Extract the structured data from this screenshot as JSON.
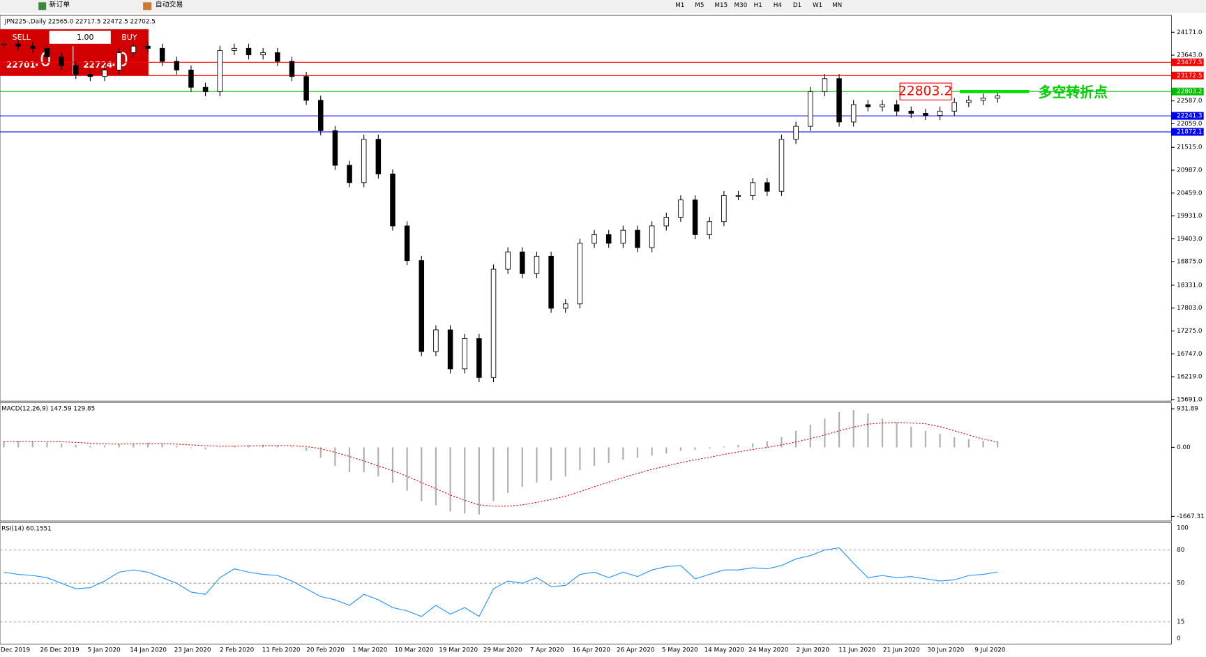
{
  "toolbar": {
    "new_order": "新订单",
    "auto_trade": "自动交易",
    "timeframes": [
      "M1",
      "M5",
      "M15",
      "M30",
      "H1",
      "H4",
      "D1",
      "W1",
      "MN"
    ]
  },
  "trade_panel": {
    "sell": "SELL",
    "lot": "1.00",
    "buy": "BUY",
    "bid_main": "22701",
    "bid_frac": ".0",
    "ask_main": "22724",
    "ask_frac": ".0"
  },
  "chart_data": {
    "type": "candlestick",
    "symbol_info": "JPN225-,Daily  22565.0 22717.5 22472.5 22702.5",
    "closes": [
      23900,
      23850,
      23800,
      23600,
      23400,
      23200,
      23150,
      23300,
      23700,
      23850,
      23800,
      23500,
      23300,
      22900,
      22800,
      23750,
      23800,
      23650,
      23700,
      23500,
      23150,
      22600,
      21900,
      21100,
      20700,
      21700,
      20900,
      19700,
      18900,
      16800,
      17300,
      16400,
      17100,
      16200,
      18700,
      19100,
      18600,
      19000,
      17800,
      17900,
      19300,
      19500,
      19300,
      19600,
      19200,
      19700,
      19900,
      20300,
      19500,
      19800,
      20400,
      20400,
      20700,
      20500,
      21700,
      22000,
      22800,
      23100,
      22100,
      22500,
      22450,
      22500,
      22350,
      22300,
      22250,
      22350,
      22550,
      22600,
      22650,
      22702.5
    ],
    "ylim": [
      15691,
      24171
    ],
    "yticks": [
      {
        "value": 24171,
        "label": "24171.0"
      },
      {
        "value": 23643,
        "label": "23643.0"
      },
      {
        "value": 22587,
        "label": "22587.0"
      },
      {
        "value": 22059,
        "label": "22059.0"
      },
      {
        "value": 21515,
        "label": "21515.0"
      },
      {
        "value": 20987,
        "label": "20987.0"
      },
      {
        "value": 20459,
        "label": "20459.0"
      },
      {
        "value": 19931,
        "label": "19931.0"
      },
      {
        "value": 19403,
        "label": "19403.0"
      },
      {
        "value": 18875,
        "label": "18875.0"
      },
      {
        "value": 18331,
        "label": "18331.0"
      },
      {
        "value": 17803,
        "label": "17803.0"
      },
      {
        "value": 17275,
        "label": "17275.0"
      },
      {
        "value": 16747,
        "label": "16747.0"
      },
      {
        "value": 16219,
        "label": "16219.0"
      },
      {
        "value": 15691,
        "label": "15691.0"
      }
    ],
    "levels": [
      {
        "value": 23477.5,
        "color": "#ff0000"
      },
      {
        "value": 23172.5,
        "color": "#ff0000"
      },
      {
        "value": 22803.2,
        "color": "#00c000"
      },
      {
        "value": 22241.3,
        "color": "#0000ff"
      },
      {
        "value": 21872.1,
        "color": "#0000ff"
      }
    ],
    "annotation": {
      "value": 22803.2,
      "text": "多空转折点"
    },
    "x_labels": [
      "Dec 2019",
      "26 Dec 2019",
      "5 Jan 2020",
      "14 Jan 2020",
      "23 Jan 2020",
      "2 Feb 2020",
      "11 Feb 2020",
      "20 Feb 2020",
      "1 Mar 2020",
      "10 Mar 2020",
      "19 Mar 2020",
      "29 Mar 2020",
      "7 Apr 2020",
      "16 Apr 2020",
      "26 Apr 2020",
      "5 May 2020",
      "14 May 2020",
      "24 May 2020",
      "2 Jun 2020",
      "11 Jun 2020",
      "21 Jun 2020",
      "30 Jun 2020",
      "9 Jul 2020"
    ],
    "macd": {
      "label": "MACD(12,26,9) 147.59 129.85",
      "ylim": [
        -1667.31,
        931.89
      ],
      "yticks": [
        931.89,
        {
          "value": 0,
          "label": "0.00"
        },
        -1667.31
      ],
      "hist": [
        150,
        160,
        150,
        120,
        90,
        60,
        40,
        50,
        80,
        100,
        110,
        90,
        40,
        -20,
        -50,
        0,
        40,
        60,
        60,
        50,
        20,
        -80,
        -250,
        -450,
        -600,
        -600,
        -700,
        -850,
        -1050,
        -1300,
        -1400,
        -1550,
        -1600,
        -1620,
        -1300,
        -1100,
        -950,
        -850,
        -800,
        -700,
        -550,
        -450,
        -380,
        -300,
        -250,
        -200,
        -150,
        -80,
        -60,
        -30,
        20,
        60,
        100,
        150,
        250,
        400,
        550,
        700,
        850,
        900,
        820,
        700,
        600,
        500,
        400,
        330,
        250,
        200,
        160,
        147.59
      ],
      "signal": [
        140,
        145,
        148,
        145,
        135,
        120,
        100,
        85,
        80,
        85,
        90,
        90,
        80,
        60,
        40,
        30,
        30,
        35,
        40,
        42,
        40,
        20,
        -30,
        -120,
        -220,
        -330,
        -450,
        -560,
        -700,
        -850,
        -1000,
        -1150,
        -1280,
        -1390,
        -1420,
        -1420,
        -1390,
        -1330,
        -1260,
        -1180,
        -1070,
        -950,
        -840,
        -730,
        -630,
        -530,
        -450,
        -370,
        -300,
        -240,
        -170,
        -110,
        -50,
        0,
        60,
        130,
        210,
        300,
        400,
        490,
        560,
        590,
        600,
        590,
        570,
        500,
        400,
        300,
        200,
        129.85
      ]
    },
    "rsi": {
      "label": "RSI(14) 60.1551",
      "ylim": [
        0,
        100
      ],
      "yticks": [
        100,
        80,
        50,
        15,
        0
      ],
      "values": [
        60,
        58,
        57,
        55,
        50,
        45,
        46,
        52,
        60,
        62,
        60,
        55,
        50,
        42,
        40,
        55,
        63,
        60,
        58,
        57,
        52,
        45,
        38,
        35,
        30,
        40,
        35,
        28,
        25,
        20,
        30,
        22,
        28,
        20,
        45,
        52,
        50,
        55,
        47,
        48,
        58,
        60,
        55,
        60,
        56,
        62,
        65,
        66,
        54,
        58,
        62,
        62,
        64,
        63,
        66,
        72,
        75,
        80,
        82,
        68,
        55,
        57,
        55,
        56,
        54,
        52,
        53,
        57,
        58,
        60.1551
      ]
    }
  }
}
